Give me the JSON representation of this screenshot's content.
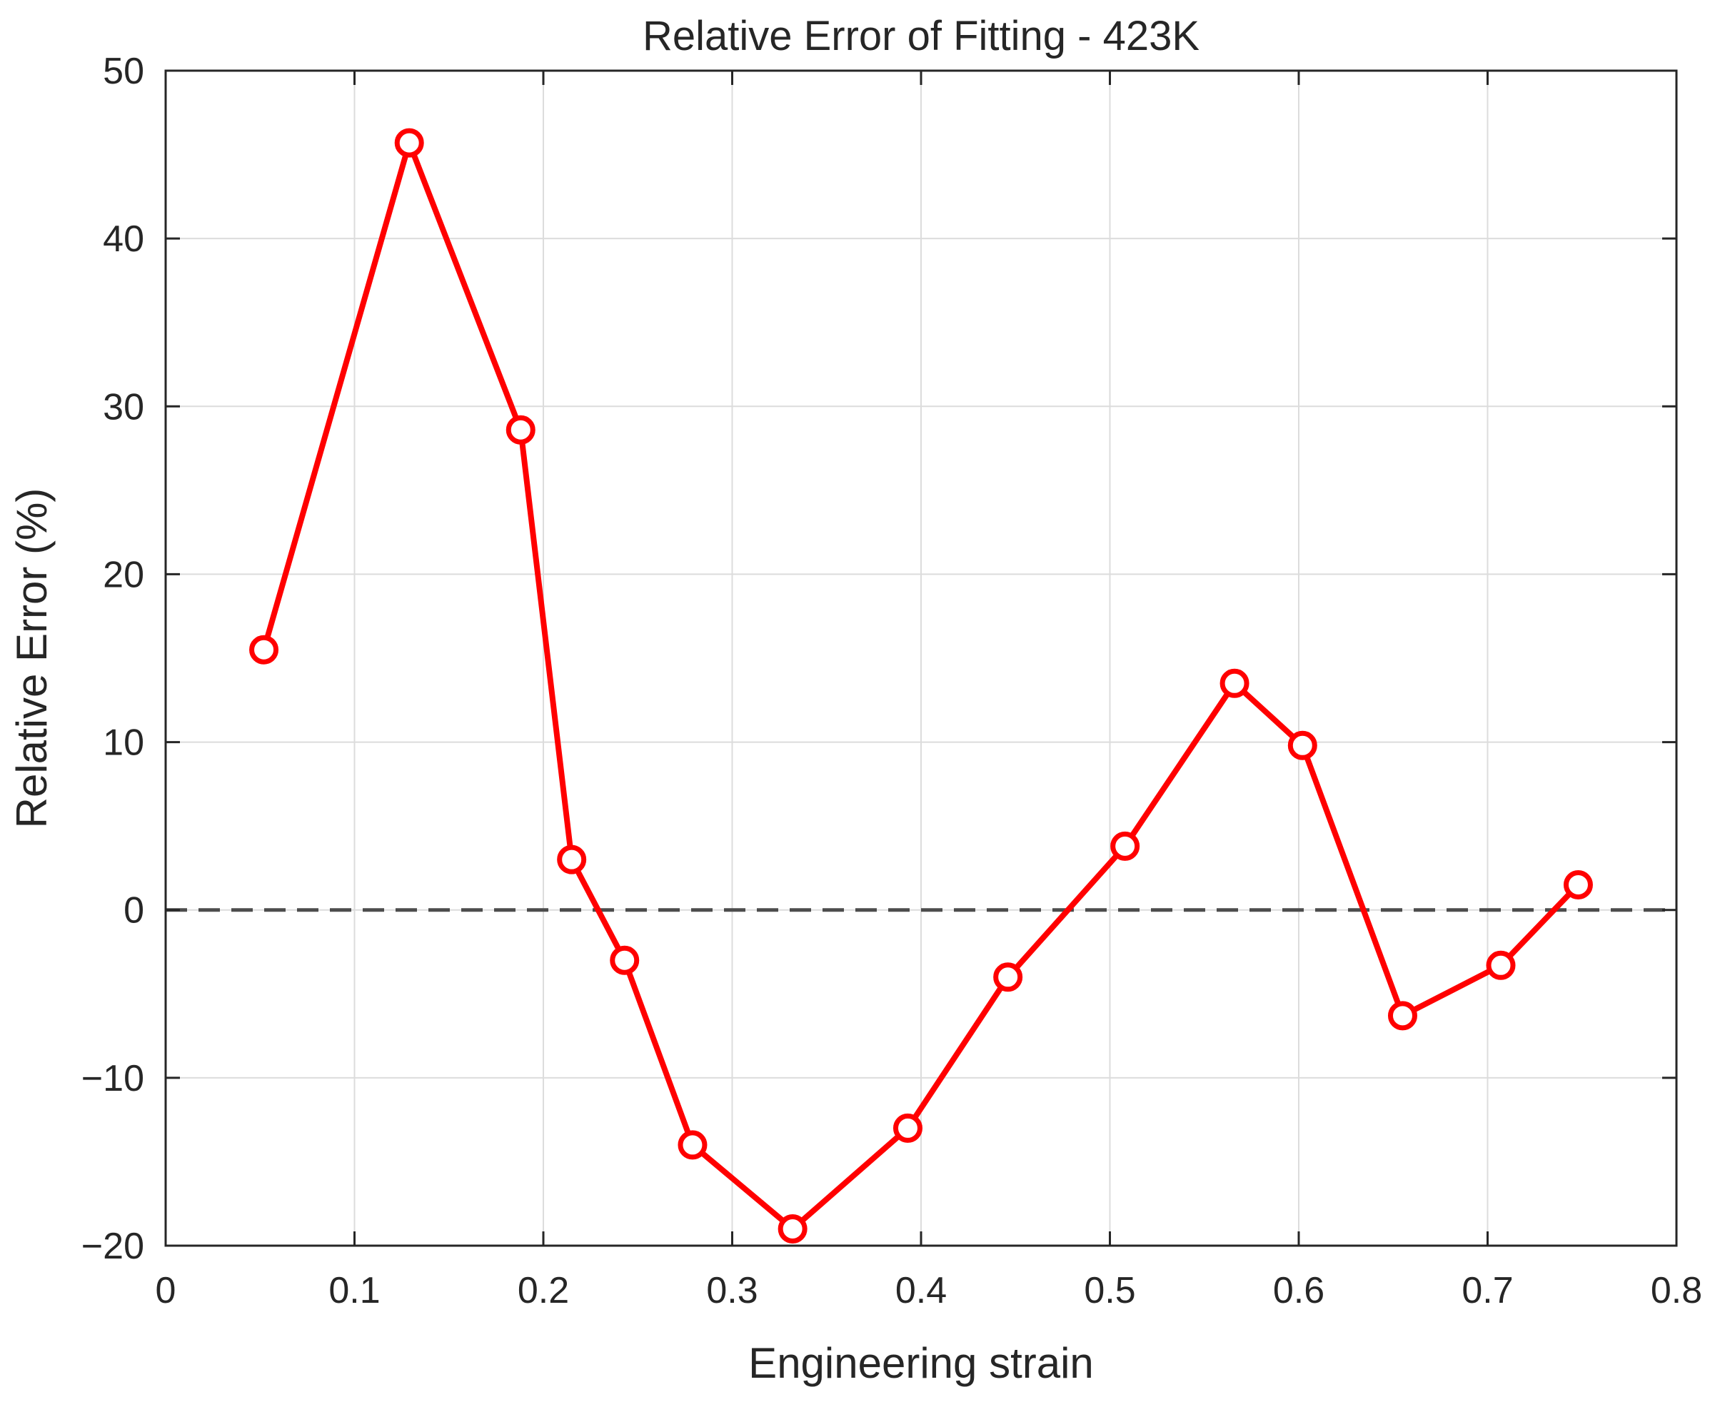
{
  "chart_data": {
    "type": "line",
    "title": "Relative Error of Fitting - 423K",
    "xlabel": "Engineering strain",
    "ylabel": "Relative Error (%)",
    "xlim": [
      0,
      0.8
    ],
    "ylim": [
      -20,
      50
    ],
    "xticks": [
      0,
      0.1,
      0.2,
      0.3,
      0.4,
      0.5,
      0.6,
      0.7,
      0.8
    ],
    "xtick_labels": [
      "0",
      "0.1",
      "0.2",
      "0.3",
      "0.4",
      "0.5",
      "0.6",
      "0.7",
      "0.8"
    ],
    "yticks": [
      -20,
      -10,
      0,
      10,
      20,
      30,
      40,
      50
    ],
    "ytick_labels": [
      "−20",
      "−10",
      "0",
      "10",
      "20",
      "30",
      "40",
      "50"
    ],
    "grid": true,
    "reference_line": {
      "y": 0,
      "style": "dashed",
      "color": "#4d4d4d"
    },
    "series": [
      {
        "color": "#ff0000",
        "marker": "circle",
        "x": [
          0.052,
          0.129,
          0.188,
          0.215,
          0.243,
          0.279,
          0.332,
          0.393,
          0.446,
          0.508,
          0.566,
          0.602,
          0.655,
          0.707,
          0.748
        ],
        "y": [
          15.5,
          45.7,
          28.6,
          3.0,
          -3.0,
          -14.0,
          -19.0,
          -13.0,
          -4.0,
          3.8,
          13.5,
          9.8,
          -6.3,
          -3.3,
          1.5
        ]
      }
    ]
  }
}
